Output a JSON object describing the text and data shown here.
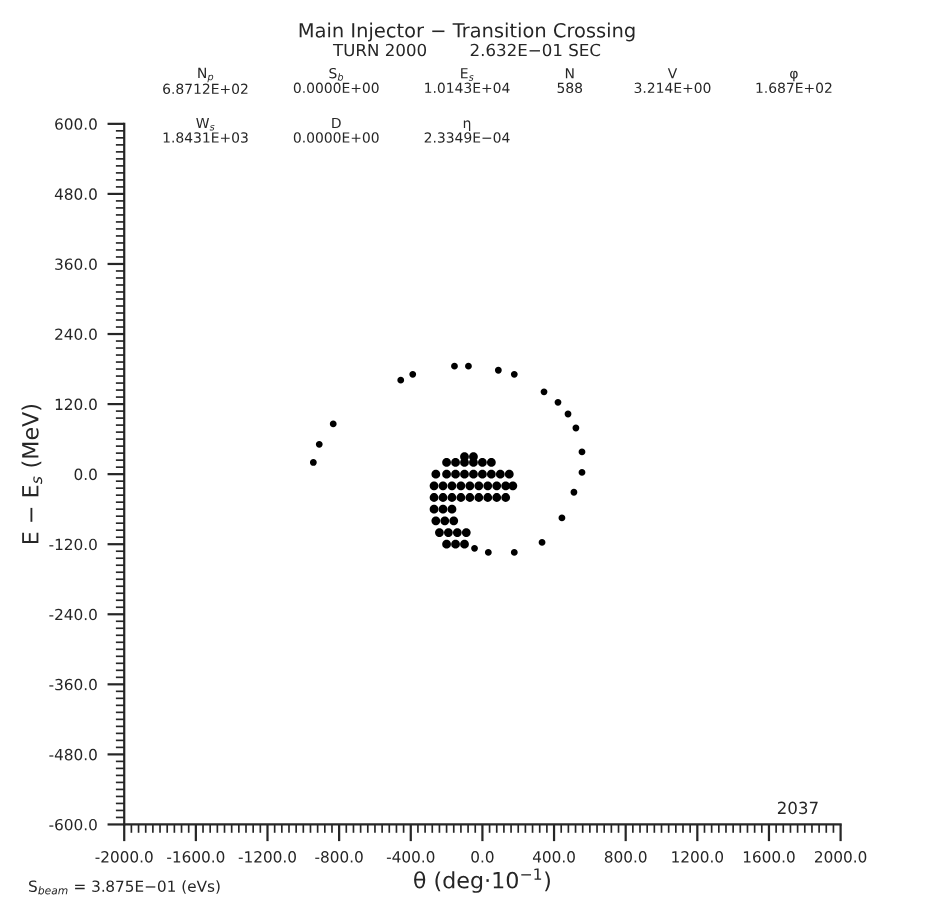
{
  "chart_data": {
    "type": "scatter",
    "title": "Main Injector − Transition Crossing",
    "subtitle": "TURN 2000        2.632E−01 SEC",
    "xlabel": "θ (deg·10$^{−1}$)",
    "ylabel": "E − E$_{s}$ (MeV)",
    "series": [
      {
        "color": "#000000",
        "x": [
          -200,
          -150,
          -100,
          -50,
          0,
          50,
          -100,
          -50,
          -260,
          -200,
          -150,
          -100,
          -50,
          0,
          50,
          100,
          150,
          -270,
          -220,
          -170,
          -120,
          -70,
          -20,
          30,
          80,
          130,
          170,
          -270,
          -220,
          -170,
          -120,
          -70,
          -20,
          30,
          80,
          130,
          -270,
          -220,
          -170,
          -260,
          -210,
          -160,
          -240,
          -190,
          -140,
          -90,
          -200,
          -150,
          -100
        ],
        "values": [
          20,
          20,
          20,
          20,
          20,
          20,
          30,
          30,
          0,
          0,
          0,
          0,
          0,
          0,
          0,
          0,
          0,
          -20,
          -20,
          -20,
          -20,
          -20,
          -20,
          -20,
          -20,
          -20,
          -20,
          -40,
          -40,
          -40,
          -40,
          -40,
          -40,
          -40,
          -40,
          -40,
          -60,
          -60,
          -60,
          -80,
          -80,
          -80,
          -100,
          -100,
          -100,
          -100,
          -120,
          -120,
          -120
        ]
      },
      {
        "color": "#000000",
        "x": [
          -944,
          -911,
          -833,
          -456,
          -389,
          -156,
          -78,
          89,
          178,
          344,
          422,
          478,
          522,
          556,
          556,
          511,
          444,
          333,
          178,
          33,
          -44
        ],
        "values": [
          20,
          51,
          86,
          161,
          171,
          185,
          185,
          178,
          171,
          141,
          123,
          103,
          79,
          38,
          3,
          -31,
          -75,
          -117,
          -134,
          -134,
          -127
        ]
      }
    ],
    "xlim": [
      -2000,
      2000
    ],
    "xticks": [
      {
        "value": -2000,
        "label": "-2000.0"
      },
      {
        "value": -1600,
        "label": "-1600.0"
      },
      {
        "value": -1200,
        "label": "-1200.0"
      },
      {
        "value": -800,
        "label": "-800.0"
      },
      {
        "value": -400,
        "label": "-400.0"
      },
      {
        "value": 0,
        "label": "0.0"
      },
      {
        "value": 400,
        "label": "400.0"
      },
      {
        "value": 800,
        "label": "800.0"
      },
      {
        "value": 1200,
        "label": "1200.0"
      },
      {
        "value": 1600,
        "label": "1600.0"
      },
      {
        "value": 2000,
        "label": "2000.0"
      }
    ],
    "ylim": [
      -600,
      600
    ],
    "yticks": [
      {
        "value": -600,
        "label": "-600.0"
      },
      {
        "value": -480,
        "label": "-480.0"
      },
      {
        "value": -360,
        "label": "-360.0"
      },
      {
        "value": -240,
        "label": "-240.0"
      },
      {
        "value": -120,
        "label": "-120.0"
      },
      {
        "value": 0,
        "label": "0.0"
      },
      {
        "value": 120,
        "label": "120.0"
      },
      {
        "value": 240,
        "label": "240.0"
      },
      {
        "value": 360,
        "label": "360.0"
      },
      {
        "value": 480,
        "label": "480.0"
      },
      {
        "value": 600,
        "label": "600.0"
      }
    ],
    "marker": "circle",
    "grid": false,
    "legend": false,
    "annotations": [
      "N$_{p}$\n6.8712E+02",
      "S$_{b}$\n0.0000E+00",
      "E$_{s}$\n1.0143E+04",
      "N\n588",
      "V\n3.214E+00",
      "φ\n1.687E+02",
      "W$_{s}$\n1.8431E+03",
      "D\n0.0000E+00",
      "η\n2.3349E−04",
      "2037",
      "S$_{beam}$ = 3.875E−01 (eVs)"
    ]
  }
}
